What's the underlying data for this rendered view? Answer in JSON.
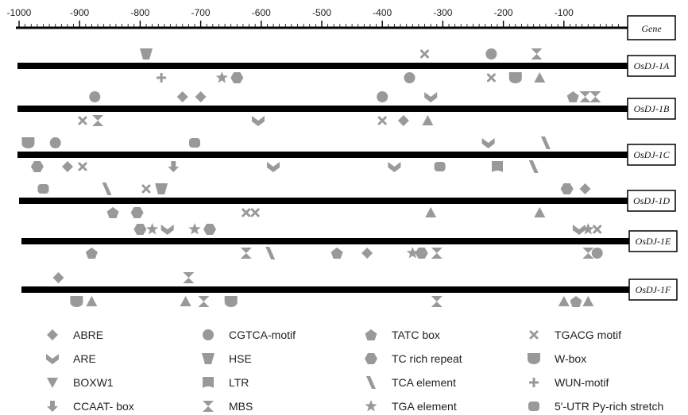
{
  "scale": {
    "ticks": [
      "-1000",
      "-900",
      "-800",
      "-700",
      "-600",
      "-500",
      "-400",
      "-300",
      "-200",
      "-100"
    ],
    "label": "Gene"
  },
  "genes": [
    {
      "name": "OsDJ-1A",
      "elements": [
        {
          "type": "HSE",
          "bp": -790,
          "side": "above"
        },
        {
          "type": "TGACG motif",
          "bp": -330,
          "side": "above"
        },
        {
          "type": "CGTCA-motif",
          "bp": -220,
          "side": "above"
        },
        {
          "type": "MBS",
          "bp": -145,
          "side": "above"
        },
        {
          "type": "WUN-motif",
          "bp": -765,
          "side": "below"
        },
        {
          "type": "TGA element",
          "bp": -665,
          "side": "below"
        },
        {
          "type": "TC rich repeat",
          "bp": -640,
          "side": "below"
        },
        {
          "type": "CGTCA-motif",
          "bp": -355,
          "side": "below"
        },
        {
          "type": "TGACG motif",
          "bp": -220,
          "side": "below"
        },
        {
          "type": "W-box",
          "bp": -180,
          "side": "below"
        },
        {
          "type": "BOXW1",
          "bp": -140,
          "side": "below"
        }
      ]
    },
    {
      "name": "OsDJ-1B",
      "elements": [
        {
          "type": "CGTCA-motif",
          "bp": -875,
          "side": "above"
        },
        {
          "type": "ABRE",
          "bp": -730,
          "side": "above"
        },
        {
          "type": "ABRE",
          "bp": -700,
          "side": "above"
        },
        {
          "type": "CGTCA-motif",
          "bp": -400,
          "side": "above"
        },
        {
          "type": "ARE",
          "bp": -320,
          "side": "above"
        },
        {
          "type": "TATC box",
          "bp": -85,
          "side": "above"
        },
        {
          "type": "MBS",
          "bp": -65,
          "side": "above"
        },
        {
          "type": "MBS",
          "bp": -48,
          "side": "above"
        },
        {
          "type": "TGACG motif",
          "bp": -895,
          "side": "below"
        },
        {
          "type": "MBS",
          "bp": -870,
          "side": "below"
        },
        {
          "type": "ARE",
          "bp": -605,
          "side": "below"
        },
        {
          "type": "TGACG motif",
          "bp": -400,
          "side": "below"
        },
        {
          "type": "ABRE",
          "bp": -365,
          "side": "below"
        },
        {
          "type": "BOXW1",
          "bp": -325,
          "side": "below"
        }
      ]
    },
    {
      "name": "OsDJ-1C",
      "elements": [
        {
          "type": "W-box",
          "bp": -985,
          "side": "above"
        },
        {
          "type": "CGTCA-motif",
          "bp": -940,
          "side": "above"
        },
        {
          "type": "5'-UTR Py-rich stretch",
          "bp": -710,
          "side": "above"
        },
        {
          "type": "ARE",
          "bp": -225,
          "side": "above"
        },
        {
          "type": "TCA element",
          "bp": -130,
          "side": "above"
        },
        {
          "type": "TC rich repeat",
          "bp": -970,
          "side": "below"
        },
        {
          "type": "ABRE",
          "bp": -920,
          "side": "below"
        },
        {
          "type": "TGACG motif",
          "bp": -895,
          "side": "below"
        },
        {
          "type": "CCAAT- box",
          "bp": -745,
          "side": "below"
        },
        {
          "type": "ARE",
          "bp": -580,
          "side": "below"
        },
        {
          "type": "ARE",
          "bp": -380,
          "side": "below"
        },
        {
          "type": "5'-UTR Py-rich stretch",
          "bp": -305,
          "side": "below"
        },
        {
          "type": "LTR",
          "bp": -210,
          "side": "below"
        },
        {
          "type": "TCA element",
          "bp": -150,
          "side": "below"
        }
      ]
    },
    {
      "name": "OsDJ-1D",
      "elements": [
        {
          "type": "5'-UTR Py-rich stretch",
          "bp": -960,
          "side": "above"
        },
        {
          "type": "TCA element",
          "bp": -855,
          "side": "above"
        },
        {
          "type": "TGACG motif",
          "bp": -790,
          "side": "above"
        },
        {
          "type": "HSE",
          "bp": -765,
          "side": "above"
        },
        {
          "type": "TC rich repeat",
          "bp": -95,
          "side": "above"
        },
        {
          "type": "ABRE",
          "bp": -65,
          "side": "above"
        },
        {
          "type": "TATC box",
          "bp": -845,
          "side": "below"
        },
        {
          "type": "TC rich repeat",
          "bp": -805,
          "side": "below"
        },
        {
          "type": "TGACG motif",
          "bp": -625,
          "side": "below"
        },
        {
          "type": "TGACG motif",
          "bp": -610,
          "side": "below"
        },
        {
          "type": "BOXW1",
          "bp": -320,
          "side": "below"
        },
        {
          "type": "BOXW1",
          "bp": -140,
          "side": "below"
        }
      ]
    },
    {
      "name": "OsDJ-1E",
      "elements": [
        {
          "type": "TC rich repeat",
          "bp": -800,
          "side": "above"
        },
        {
          "type": "TGA element",
          "bp": -780,
          "side": "above"
        },
        {
          "type": "ARE",
          "bp": -755,
          "side": "above"
        },
        {
          "type": "TGA element",
          "bp": -710,
          "side": "above"
        },
        {
          "type": "TC rich repeat",
          "bp": -685,
          "side": "above"
        },
        {
          "type": "ARE",
          "bp": -75,
          "side": "above"
        },
        {
          "type": "TGA element",
          "bp": -60,
          "side": "above"
        },
        {
          "type": "TGACG motif",
          "bp": -45,
          "side": "above"
        },
        {
          "type": "TATC box",
          "bp": -880,
          "side": "below"
        },
        {
          "type": "MBS",
          "bp": -625,
          "side": "below"
        },
        {
          "type": "TCA element",
          "bp": -585,
          "side": "below"
        },
        {
          "type": "TATC box",
          "bp": -475,
          "side": "below"
        },
        {
          "type": "ABRE",
          "bp": -425,
          "side": "below"
        },
        {
          "type": "TGA element",
          "bp": -350,
          "side": "below"
        },
        {
          "type": "TC rich repeat",
          "bp": -335,
          "side": "below"
        },
        {
          "type": "MBS",
          "bp": -310,
          "side": "below"
        },
        {
          "type": "MBS",
          "bp": -60,
          "side": "below"
        },
        {
          "type": "CGTCA-motif",
          "bp": -45,
          "side": "below"
        }
      ]
    },
    {
      "name": "OsDJ-1F",
      "elements": [
        {
          "type": "ABRE",
          "bp": -935,
          "side": "above"
        },
        {
          "type": "MBS",
          "bp": -720,
          "side": "above"
        },
        {
          "type": "W-box",
          "bp": -905,
          "side": "below"
        },
        {
          "type": "BOXW1",
          "bp": -880,
          "side": "below"
        },
        {
          "type": "BOXW1",
          "bp": -725,
          "side": "below"
        },
        {
          "type": "MBS",
          "bp": -695,
          "side": "below"
        },
        {
          "type": "W-box",
          "bp": -650,
          "side": "below"
        },
        {
          "type": "MBS",
          "bp": -310,
          "side": "below"
        },
        {
          "type": "BOXW1",
          "bp": -100,
          "side": "below"
        },
        {
          "type": "TATC box",
          "bp": -80,
          "side": "below"
        },
        {
          "type": "BOXW1",
          "bp": -60,
          "side": "below"
        }
      ]
    }
  ],
  "legend": [
    {
      "shape": "diamond",
      "label": "ABRE"
    },
    {
      "shape": "circle",
      "label": "CGTCA-motif"
    },
    {
      "shape": "pentagon",
      "label": "TATC box"
    },
    {
      "shape": "x-mark",
      "label": "TGACG motif"
    },
    {
      "shape": "chevron",
      "label": "ARE"
    },
    {
      "shape": "trapezoid-down",
      "label": "HSE"
    },
    {
      "shape": "hexagon",
      "label": "TC rich repeat"
    },
    {
      "shape": "shield",
      "label": "W-box"
    },
    {
      "shape": "triangle-down",
      "label": "BOXW1"
    },
    {
      "shape": "flag",
      "label": "LTR"
    },
    {
      "shape": "slash",
      "label": "TCA element"
    },
    {
      "shape": "plus",
      "label": "WUN-motif"
    },
    {
      "shape": "arrow-down",
      "label": "CCAAT- box"
    },
    {
      "shape": "hourglass",
      "label": "MBS"
    },
    {
      "shape": "star",
      "label": "TGA element"
    },
    {
      "shape": "rounded-rect",
      "label": "5'-UTR Py-rich stretch"
    }
  ],
  "colors": {
    "marker": "#999999",
    "line": "#000000",
    "text": "#222222"
  }
}
